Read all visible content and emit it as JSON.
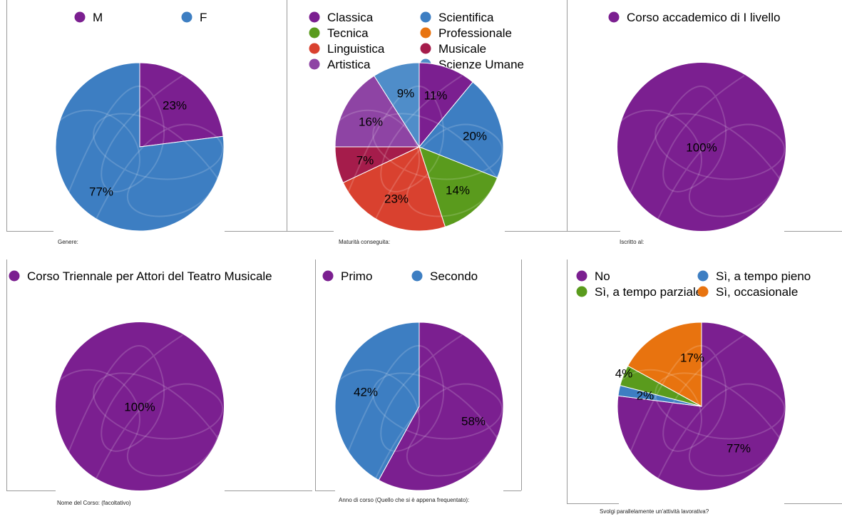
{
  "charts": [
    {
      "type": "pie",
      "caption": "Genere:",
      "slices": [
        {
          "label": "M",
          "value": 23,
          "pct_label": "23%",
          "color": "#7b1f90"
        },
        {
          "label": "F",
          "value": 77,
          "pct_label": "77%",
          "color": "#3d7ec2"
        }
      ]
    },
    {
      "type": "pie",
      "caption": "Maturità conseguita:",
      "legend": [
        "Classica",
        "Scientifica",
        "Tecnica",
        "Professionale",
        "Linguistica",
        "Musicale",
        "Artistica",
        "Scienze Umane"
      ],
      "slices": [
        {
          "label": "Classica",
          "value": 11,
          "pct_label": "11%",
          "color": "#7b1f90"
        },
        {
          "label": "Scientifica",
          "value": 20,
          "pct_label": "20%",
          "color": "#3d7ec2"
        },
        {
          "label": "Tecnica",
          "value": 14,
          "pct_label": "14%",
          "color": "#5a9b1d"
        },
        {
          "label": "Professionale",
          "value": 0,
          "pct_label": "",
          "color": "#e8730f"
        },
        {
          "label": "Linguistica",
          "value": 23,
          "pct_label": "23%",
          "color": "#d9412f"
        },
        {
          "label": "Musicale",
          "value": 7,
          "pct_label": "7%",
          "color": "#a51c4b"
        },
        {
          "label": "Artistica",
          "value": 16,
          "pct_label": "16%",
          "color": "#8e44a4"
        },
        {
          "label": "Scienze Umane",
          "value": 9,
          "pct_label": "9%",
          "color": "#4f8dc9"
        }
      ]
    },
    {
      "type": "pie",
      "caption": "Iscritto al:",
      "slices": [
        {
          "label": "Corso accademico di I livello",
          "value": 100,
          "pct_label": "100%",
          "color": "#7b1f90"
        }
      ]
    },
    {
      "type": "pie",
      "caption": "Nome del Corso: (facoltativo)",
      "slices": [
        {
          "label": "Corso Triennale per Attori del Teatro Musicale",
          "value": 100,
          "pct_label": "100%",
          "color": "#7b1f90"
        }
      ]
    },
    {
      "type": "pie",
      "caption": "Anno di corso (Quello che si è appena frequentato):",
      "slices": [
        {
          "label": "Primo",
          "value": 58,
          "pct_label": "58%",
          "color": "#7b1f90"
        },
        {
          "label": "Secondo",
          "value": 42,
          "pct_label": "42%",
          "color": "#3d7ec2"
        }
      ]
    },
    {
      "type": "pie",
      "caption": "Svolgi parallelamente un'attività lavorativa?",
      "legend": [
        "No",
        "Sì, a tempo pieno",
        "Sì, a tempo parziale",
        "Sì, occasionale"
      ],
      "slices": [
        {
          "label": "No",
          "value": 77,
          "pct_label": "77%",
          "color": "#7b1f90"
        },
        {
          "label": "Sì, a tempo pieno",
          "value": 2,
          "pct_label": "2%",
          "color": "#3d7ec2"
        },
        {
          "label": "Sì, a tempo parziale",
          "value": 4,
          "pct_label": "4%",
          "color": "#5a9b1d"
        },
        {
          "label": "Sì, occasionale",
          "value": 17,
          "pct_label": "17%",
          "color": "#e8730f"
        }
      ]
    }
  ]
}
